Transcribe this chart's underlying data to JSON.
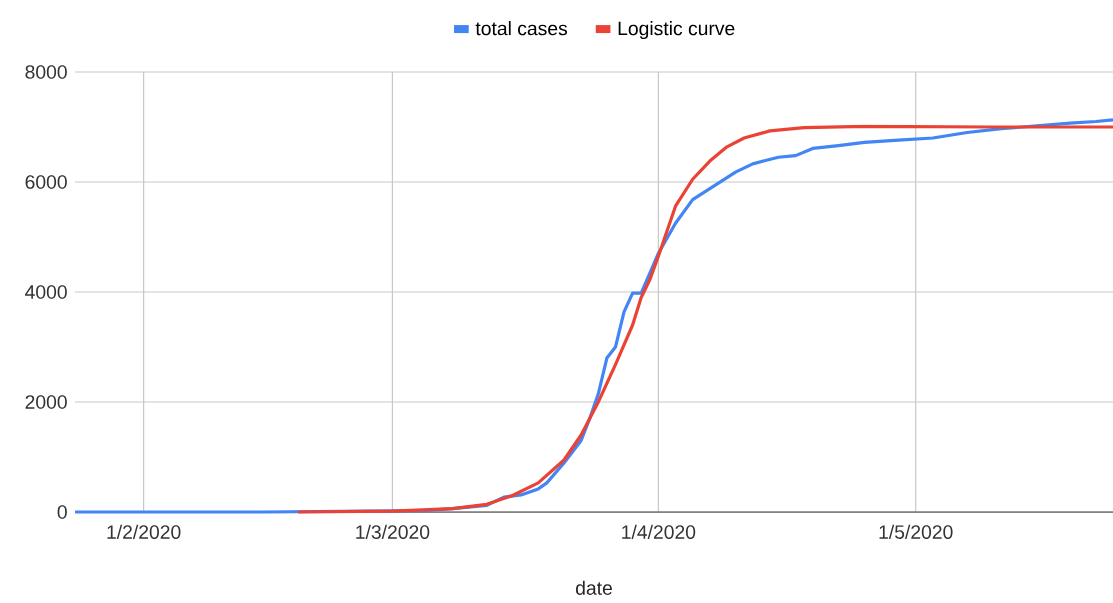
{
  "chart_data": {
    "type": "line",
    "xlabel": "date",
    "legend": "top",
    "grid": true,
    "xlim": [
      "2020-01-24",
      "2020-05-24"
    ],
    "xticks": [
      {
        "value": "2020-02-01",
        "label": "1/2/2020"
      },
      {
        "value": "2020-03-01",
        "label": "1/3/2020"
      },
      {
        "value": "2020-04-01",
        "label": "1/4/2020"
      },
      {
        "value": "2020-05-01",
        "label": "1/5/2020"
      }
    ],
    "ylim": [
      0,
      8000
    ],
    "yticks": [
      0,
      2000,
      4000,
      6000,
      8000
    ],
    "series": [
      {
        "name": "total cases",
        "color": "#4285f4",
        "x": [
          "2020-01-24",
          "2020-02-01",
          "2020-02-15",
          "2020-03-01",
          "2020-03-05",
          "2020-03-08",
          "2020-03-12",
          "2020-03-14",
          "2020-03-16",
          "2020-03-18",
          "2020-03-19",
          "2020-03-21",
          "2020-03-23",
          "2020-03-24",
          "2020-03-25",
          "2020-03-26",
          "2020-03-27",
          "2020-03-28",
          "2020-03-29",
          "2020-03-30",
          "2020-04-01",
          "2020-04-03",
          "2020-04-05",
          "2020-04-07",
          "2020-04-10",
          "2020-04-12",
          "2020-04-15",
          "2020-04-17",
          "2020-04-19",
          "2020-04-22",
          "2020-04-25",
          "2020-04-29",
          "2020-05-03",
          "2020-05-07",
          "2020-05-11",
          "2020-05-15",
          "2020-05-19",
          "2020-05-22",
          "2020-05-24"
        ],
        "values": [
          0,
          0,
          0,
          20,
          30,
          60,
          120,
          270,
          310,
          420,
          530,
          890,
          1300,
          1700,
          2150,
          2800,
          3000,
          3640,
          3980,
          3980,
          4700,
          5250,
          5680,
          5880,
          6180,
          6330,
          6450,
          6480,
          6610,
          6660,
          6720,
          6760,
          6800,
          6900,
          6970,
          7020,
          7070,
          7100,
          7130
        ]
      },
      {
        "name": "Logistic curve",
        "color": "#ea4335",
        "x": [
          "2020-02-19",
          "2020-03-01",
          "2020-03-08",
          "2020-03-12",
          "2020-03-15",
          "2020-03-18",
          "2020-03-21",
          "2020-03-23",
          "2020-03-25",
          "2020-03-27",
          "2020-03-29",
          "2020-03-30",
          "2020-03-31",
          "2020-04-01",
          "2020-04-03",
          "2020-04-05",
          "2020-04-07",
          "2020-04-09",
          "2020-04-11",
          "2020-04-14",
          "2020-04-18",
          "2020-04-25",
          "2020-05-10",
          "2020-05-24"
        ],
        "values": [
          0,
          15,
          60,
          140,
          300,
          530,
          945,
          1400,
          2000,
          2680,
          3400,
          3900,
          4220,
          4650,
          5560,
          6050,
          6380,
          6640,
          6800,
          6930,
          6990,
          7010,
          7000,
          7000
        ]
      }
    ]
  }
}
